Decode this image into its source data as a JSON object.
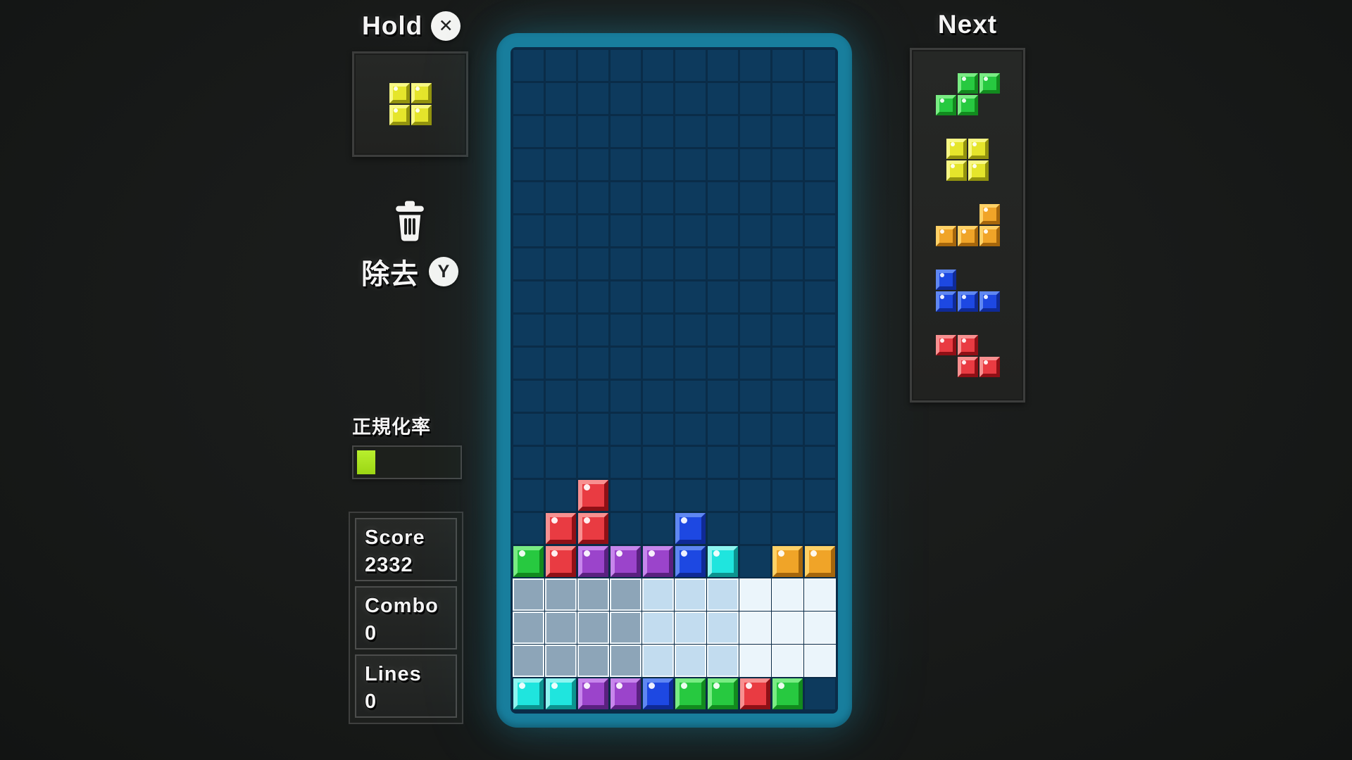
{
  "hold": {
    "title": "Hold",
    "button_label": "✕",
    "piece": "O"
  },
  "discard": {
    "label": "除去",
    "button_label": "Y"
  },
  "meter": {
    "label": "正規化率",
    "percent": 18
  },
  "stats": {
    "items": [
      {
        "label": "Score",
        "value": "2332"
      },
      {
        "label": "Combo",
        "value": "0"
      },
      {
        "label": "Lines",
        "value": "0"
      }
    ]
  },
  "next": {
    "title": "Next",
    "queue": [
      "S",
      "O",
      "L",
      "J",
      "Z"
    ]
  },
  "board": {
    "cols": 10,
    "rows": 20,
    "rows_map": [
      "..........",
      "..........",
      "..........",
      "..........",
      "..........",
      "..........",
      "..........",
      "..........",
      "..........",
      "..........",
      "..........",
      "..........",
      "..........",
      "..R.......",
      ".RR..B....",
      "GRPPPBC.OO",
      "aaaabbbccc",
      "aaaabbbccc",
      "aaaabbbccc",
      "CCPPBGGRG."
    ]
  },
  "palette": {
    "R": {
      "face": "#e93b42",
      "light": "#f89090",
      "dark": "#8f1016"
    },
    "G": {
      "face": "#27c940",
      "light": "#79ec83",
      "dark": "#128a1e"
    },
    "B": {
      "face": "#1d48e2",
      "light": "#5f87f2",
      "dark": "#0f2a96"
    },
    "O": {
      "face": "#f0a428",
      "light": "#ffd166",
      "dark": "#a5660c"
    },
    "Y": {
      "face": "#e5e52b",
      "light": "#f8f885",
      "dark": "#93930e"
    },
    "P": {
      "face": "#9b44cb",
      "light": "#c786ec",
      "dark": "#5a2180"
    },
    "C": {
      "face": "#1fe5de",
      "light": "#8ef5f0",
      "dark": "#0c938f"
    },
    "a": {
      "fill": "#8da5b8"
    },
    "b": {
      "fill": "#c2dcef"
    },
    "c": {
      "fill": "#ebf5fb"
    }
  },
  "piece_shapes": {
    "S": {
      "color": "G",
      "grid": [
        [
          0,
          1,
          1
        ],
        [
          1,
          1,
          0
        ]
      ]
    },
    "O": {
      "color": "Y",
      "grid": [
        [
          1,
          1
        ],
        [
          1,
          1
        ]
      ]
    },
    "L": {
      "color": "O",
      "grid": [
        [
          0,
          0,
          1
        ],
        [
          1,
          1,
          1
        ]
      ]
    },
    "J": {
      "color": "B",
      "grid": [
        [
          1,
          0,
          0
        ],
        [
          1,
          1,
          1
        ]
      ]
    },
    "Z": {
      "color": "R",
      "grid": [
        [
          1,
          1,
          0
        ],
        [
          0,
          1,
          1
        ]
      ]
    }
  },
  "colors": {
    "playfield_border": "#187e9d",
    "cell_empty": "#0d3a5d",
    "grid_gap": "#0a2c48",
    "background": "#191b1a",
    "meter_fill": "#a8e11e"
  }
}
